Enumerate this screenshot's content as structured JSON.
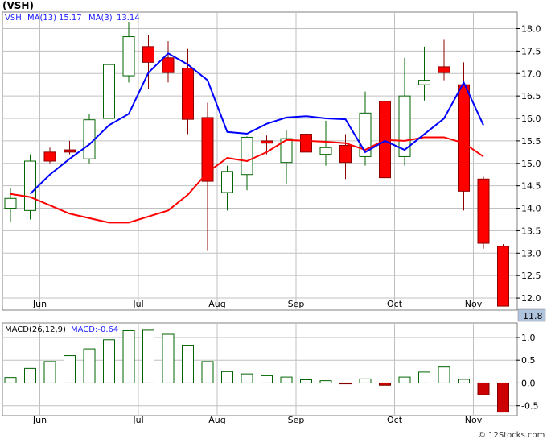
{
  "header": {
    "ticker": "(VSH)",
    "legend_symbol": "VSH",
    "ma13_label": "MA(13)",
    "ma13_value": "15.17",
    "ma3_label": "MA(3)",
    "ma3_value": "13.14"
  },
  "macd_header": {
    "label": "MACD(26,12,9)",
    "value_label": "MACD:-0.64"
  },
  "last_price_box": "11.8",
  "watermark": "© 12Stocks.com",
  "colors": {
    "up_body": "#ffffff",
    "up_border": "#006400",
    "down_body": "#ff0000",
    "down_border": "#8b0000",
    "ma13": "#ff0000",
    "ma3": "#0000ff",
    "macd_pos": "#006400",
    "macd_neg": "#cc0000",
    "grid": "#c0c0c0",
    "price_box": "#b0c4de"
  },
  "chart_data": [
    {
      "type": "candlestick",
      "name": "price",
      "ylim": [
        11.75,
        18.35
      ],
      "yticks": [
        12.0,
        12.5,
        13.0,
        13.5,
        14.0,
        14.5,
        15.0,
        15.5,
        16.0,
        16.5,
        17.0,
        17.5,
        18.0
      ],
      "ytick_labels": [
        "12.0",
        "12.5",
        "13.0",
        "13.5",
        "14.0",
        "14.5",
        "15.0",
        "15.5",
        "16.0",
        "16.5",
        "17.0",
        "17.5",
        "18.0"
      ],
      "xlabels": [
        {
          "i": 1,
          "label": "Jun"
        },
        {
          "i": 6,
          "label": "Jul"
        },
        {
          "i": 10,
          "label": "Aug"
        },
        {
          "i": 14,
          "label": "Sep"
        },
        {
          "i": 19,
          "label": "Oct"
        },
        {
          "i": 23,
          "label": "Nov"
        }
      ],
      "candles": [
        {
          "o": 14.0,
          "h": 14.45,
          "l": 13.7,
          "c": 14.22
        },
        {
          "o": 13.95,
          "h": 15.2,
          "l": 13.75,
          "c": 15.05
        },
        {
          "o": 15.25,
          "h": 15.35,
          "l": 15.0,
          "c": 15.05
        },
        {
          "o": 15.3,
          "h": 15.5,
          "l": 15.2,
          "c": 15.25
        },
        {
          "o": 15.1,
          "h": 16.1,
          "l": 15.0,
          "c": 15.97
        },
        {
          "o": 16.0,
          "h": 17.3,
          "l": 15.7,
          "c": 17.2
        },
        {
          "o": 16.95,
          "h": 18.15,
          "l": 16.8,
          "c": 17.82
        },
        {
          "o": 17.6,
          "h": 17.85,
          "l": 16.65,
          "c": 17.25
        },
        {
          "o": 17.35,
          "h": 17.72,
          "l": 16.8,
          "c": 17.02
        },
        {
          "o": 17.12,
          "h": 17.55,
          "l": 15.65,
          "c": 15.98
        },
        {
          "o": 16.02,
          "h": 16.35,
          "l": 13.05,
          "c": 14.6
        },
        {
          "o": 14.35,
          "h": 14.95,
          "l": 13.95,
          "c": 14.82
        },
        {
          "o": 14.75,
          "h": 15.6,
          "l": 14.4,
          "c": 15.58
        },
        {
          "o": 15.5,
          "h": 15.62,
          "l": 15.2,
          "c": 15.45
        },
        {
          "o": 15.02,
          "h": 15.75,
          "l": 14.55,
          "c": 15.55
        },
        {
          "o": 15.65,
          "h": 15.7,
          "l": 15.1,
          "c": 15.25
        },
        {
          "o": 15.2,
          "h": 15.95,
          "l": 14.95,
          "c": 15.35
        },
        {
          "o": 15.4,
          "h": 15.65,
          "l": 14.65,
          "c": 15.02
        },
        {
          "o": 15.15,
          "h": 16.6,
          "l": 14.95,
          "c": 16.12
        },
        {
          "o": 16.38,
          "h": 16.4,
          "l": 14.68,
          "c": 14.68
        },
        {
          "o": 15.15,
          "h": 17.35,
          "l": 14.95,
          "c": 16.5
        },
        {
          "o": 16.75,
          "h": 17.6,
          "l": 16.4,
          "c": 16.85
        },
        {
          "o": 17.15,
          "h": 17.75,
          "l": 16.85,
          "c": 17.02
        },
        {
          "o": 16.75,
          "h": 17.25,
          "l": 13.95,
          "c": 14.38
        },
        {
          "o": 14.65,
          "h": 14.7,
          "l": 13.1,
          "c": 13.22
        },
        {
          "o": 13.15,
          "h": 13.2,
          "l": 11.85,
          "c": 11.82
        }
      ],
      "series": [
        {
          "name": "MA(13)",
          "color": "#ff0000",
          "start": 0,
          "values": [
            14.32,
            14.25,
            null,
            13.88,
            null,
            13.68,
            13.68,
            null,
            13.95,
            14.3,
            14.8,
            15.12,
            15.05,
            15.25,
            15.52,
            15.5,
            15.48,
            15.45,
            15.3,
            15.52,
            15.5,
            15.58,
            15.58,
            15.45,
            15.15
          ]
        },
        {
          "name": "MA(3)",
          "color": "#0000ff",
          "start": 1,
          "values": [
            14.32,
            14.75,
            15.1,
            15.42,
            15.85,
            16.1,
            17.02,
            17.45,
            17.2,
            16.85,
            15.7,
            15.66,
            15.88,
            16.02,
            16.05,
            16.0,
            15.98,
            15.25,
            15.5,
            15.3,
            15.65,
            16.0,
            16.8,
            15.85,
            null,
            null
          ]
        }
      ],
      "last_price": 11.8
    },
    {
      "type": "bar",
      "name": "macd",
      "ylim": [
        -0.7,
        1.3
      ],
      "yticks": [
        -0.5,
        0.0,
        0.5,
        1.0
      ],
      "ytick_labels": [
        "-0.5",
        "0.0",
        "0.5",
        "1.0"
      ],
      "xlabels": [
        {
          "i": 1,
          "label": "Jun"
        },
        {
          "i": 6,
          "label": "Jul"
        },
        {
          "i": 10,
          "label": "Aug"
        },
        {
          "i": 14,
          "label": "Sep"
        },
        {
          "i": 19,
          "label": "Oct"
        },
        {
          "i": 23,
          "label": "Nov"
        }
      ],
      "values": [
        0.12,
        0.32,
        0.47,
        0.6,
        0.75,
        0.95,
        1.15,
        1.16,
        1.07,
        0.83,
        0.47,
        0.25,
        0.2,
        0.16,
        0.13,
        0.07,
        0.05,
        -0.02,
        0.09,
        -0.05,
        0.13,
        0.24,
        0.35,
        0.08,
        -0.26,
        -0.64
      ]
    }
  ]
}
